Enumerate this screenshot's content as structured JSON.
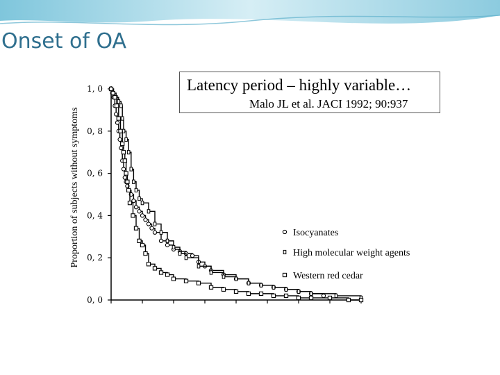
{
  "slide": {
    "title": "Onset of OA",
    "callout_title": "Latency period – highly variable…",
    "callout_citation": "Malo JL et al. JACI 1992; 90:937"
  },
  "colors": {
    "title": "#2f6f8e",
    "banner": "#bfe3ee",
    "axis": "#000000"
  },
  "chart_data": {
    "type": "line",
    "ylabel": "Proportion of subjects without symptoms",
    "xlabel": "",
    "ylim": [
      0,
      1
    ],
    "xlim": [
      0,
      400
    ],
    "yticks": [
      "0, 0",
      "0, 2",
      "0, 4",
      "0, 6",
      "0, 8",
      "1, 0"
    ],
    "ytick_values": [
      0,
      0.2,
      0.4,
      0.6,
      0.8,
      1.0
    ],
    "xticks": [
      0,
      50,
      100,
      150,
      200,
      250,
      300,
      350,
      400
    ],
    "grid": false,
    "legend_position": "right",
    "series": [
      {
        "name": "Isocyanates",
        "marker": "circle",
        "x": [
          0,
          2,
          4,
          6,
          8,
          10,
          12,
          14,
          16,
          18,
          20,
          22,
          24,
          26,
          28,
          32,
          36,
          40,
          45,
          50,
          55,
          60,
          65,
          70,
          80,
          90,
          100,
          110,
          120,
          130,
          140,
          150,
          160,
          180,
          200,
          220,
          240,
          260,
          280,
          300,
          320,
          340
        ],
        "y": [
          1.0,
          0.98,
          0.96,
          0.92,
          0.88,
          0.84,
          0.8,
          0.76,
          0.72,
          0.66,
          0.62,
          0.58,
          0.56,
          0.54,
          0.52,
          0.5,
          0.47,
          0.44,
          0.42,
          0.4,
          0.38,
          0.36,
          0.34,
          0.32,
          0.28,
          0.26,
          0.24,
          0.23,
          0.22,
          0.21,
          0.18,
          0.16,
          0.14,
          0.12,
          0.1,
          0.08,
          0.07,
          0.06,
          0.05,
          0.04,
          0.03,
          0.02
        ]
      },
      {
        "name": "High molecular weight agents",
        "marker": "diamond",
        "x": [
          0,
          4,
          8,
          12,
          16,
          18,
          20,
          24,
          28,
          32,
          36,
          40,
          45,
          50,
          60,
          70,
          80,
          90,
          100,
          110,
          120,
          140,
          160,
          180,
          200,
          220,
          240,
          260,
          280,
          300,
          320,
          360,
          400
        ],
        "y": [
          1.0,
          0.98,
          0.96,
          0.94,
          0.92,
          0.86,
          0.8,
          0.76,
          0.7,
          0.62,
          0.56,
          0.52,
          0.48,
          0.46,
          0.42,
          0.36,
          0.32,
          0.28,
          0.25,
          0.22,
          0.2,
          0.16,
          0.13,
          0.11,
          0.1,
          0.08,
          0.07,
          0.06,
          0.05,
          0.04,
          0.03,
          0.02,
          0.01
        ]
      },
      {
        "name": "Western red cedar",
        "marker": "square",
        "x": [
          0,
          3,
          6,
          9,
          12,
          15,
          18,
          20,
          22,
          24,
          26,
          28,
          30,
          35,
          40,
          45,
          50,
          55,
          60,
          70,
          80,
          90,
          100,
          120,
          140,
          160,
          180,
          200,
          220,
          240,
          260,
          280,
          300,
          320,
          350,
          380,
          400
        ],
        "y": [
          1.0,
          0.98,
          0.96,
          0.92,
          0.86,
          0.8,
          0.74,
          0.7,
          0.66,
          0.6,
          0.56,
          0.52,
          0.46,
          0.4,
          0.34,
          0.28,
          0.26,
          0.22,
          0.17,
          0.15,
          0.13,
          0.12,
          0.1,
          0.09,
          0.08,
          0.06,
          0.05,
          0.04,
          0.03,
          0.03,
          0.02,
          0.02,
          0.01,
          0.01,
          0.01,
          0.0,
          0.0
        ]
      }
    ]
  }
}
